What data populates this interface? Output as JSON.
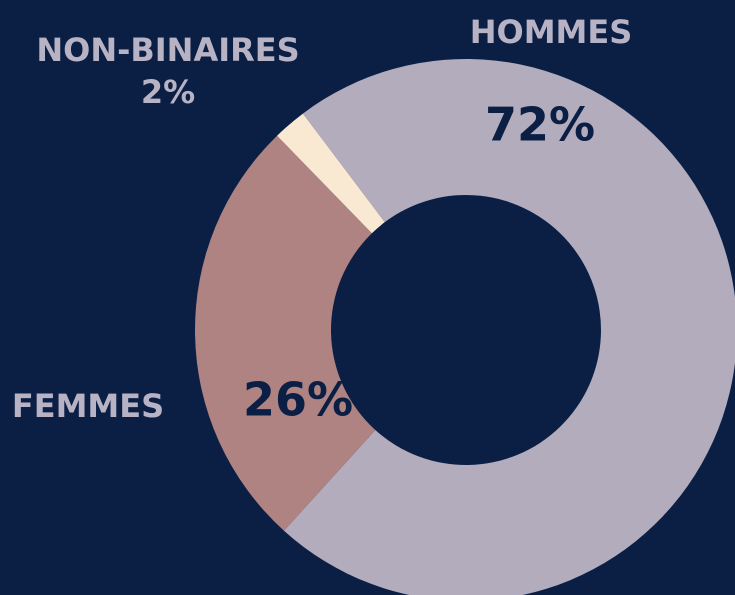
{
  "chart_data": {
    "type": "donut",
    "categories": [
      "HOMMES",
      "FEMMES",
      "NON-BINAIRES"
    ],
    "values": [
      72,
      26,
      2
    ],
    "value_labels": [
      "72%",
      "26%",
      "2%"
    ],
    "colors": [
      "#b3acbc",
      "#b08383",
      "#f9e9d2"
    ]
  }
}
